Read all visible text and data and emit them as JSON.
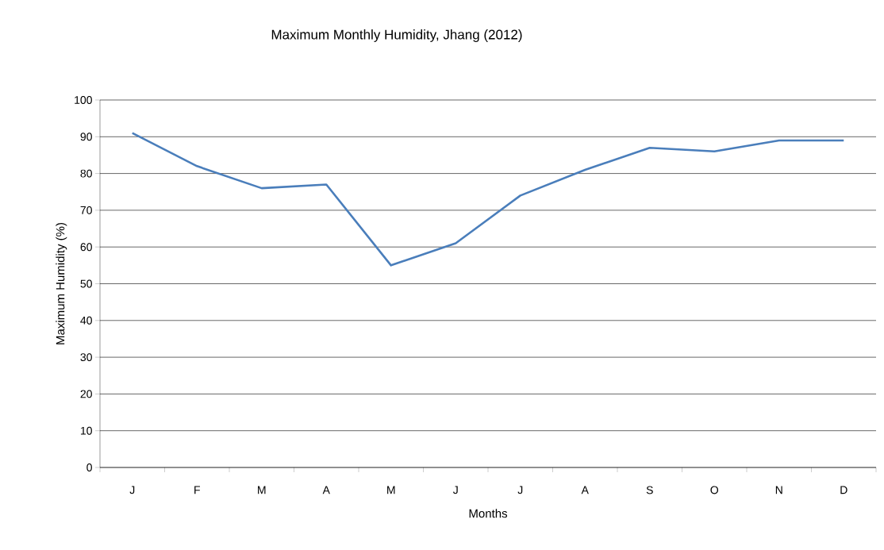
{
  "chart_data": {
    "type": "line",
    "title": "Maximum Monthly Humidity, Jhang (2012)",
    "xlabel": "Months",
    "ylabel": "Maximum Humidity (%)",
    "categories": [
      "J",
      "F",
      "M",
      "A",
      "M",
      "J",
      "J",
      "A",
      "S",
      "O",
      "N",
      "D"
    ],
    "series": [
      {
        "color": "#4a7ebb",
        "values": [
          91,
          82,
          76,
          77,
          55,
          61,
          74,
          81,
          87,
          86,
          89,
          89
        ]
      }
    ],
    "ylim": [
      0,
      100
    ],
    "yticks": [
      0,
      10,
      20,
      30,
      40,
      50,
      60,
      70,
      80,
      90,
      100
    ],
    "grid": "y",
    "marker": "none",
    "line_style": "solid"
  }
}
